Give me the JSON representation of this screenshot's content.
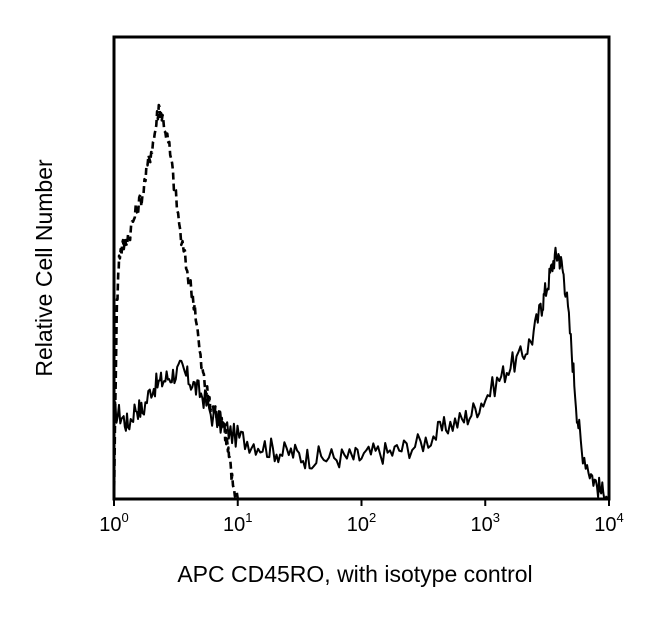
{
  "chart_data": {
    "type": "line",
    "title": "",
    "xlabel": "APC CD45RO, with isotype control",
    "ylabel": "Relative Cell Number",
    "x_scale": "log",
    "xlim": [
      1,
      10000
    ],
    "ylim": [
      0,
      100
    ],
    "grid": false,
    "legend": "none",
    "x_ticks": [
      {
        "value": 1,
        "base": "10",
        "exp": "0"
      },
      {
        "value": 10,
        "base": "10",
        "exp": "1"
      },
      {
        "value": 100,
        "base": "10",
        "exp": "2"
      },
      {
        "value": 1000,
        "base": "10",
        "exp": "3"
      },
      {
        "value": 10000,
        "base": "10",
        "exp": "4"
      }
    ],
    "series": [
      {
        "style": "solid",
        "color": "#000000",
        "x": [
          1.0,
          1.15,
          1.3,
          1.5,
          1.7,
          2.0,
          2.3,
          2.6,
          3.0,
          3.5,
          4.0,
          4.6,
          5.3,
          6.2,
          7.5,
          9.0,
          11,
          14,
          18,
          22,
          28,
          35,
          45,
          60,
          80,
          100,
          130,
          170,
          220,
          300,
          400,
          500,
          650,
          800,
          1000,
          1300,
          1600,
          2000,
          2400,
          2800,
          3000,
          3300,
          3600,
          3900,
          4200,
          4500,
          5000,
          5500,
          6000,
          7000,
          8000,
          9000,
          10000
        ],
        "y": [
          19,
          18,
          16,
          20,
          19,
          24,
          25,
          26,
          27,
          28,
          26,
          24,
          22,
          18,
          16,
          14,
          13,
          12,
          11,
          10,
          10,
          9,
          9,
          9,
          9,
          9,
          10,
          10,
          11,
          12,
          14,
          16,
          17,
          19,
          22,
          26,
          29,
          31,
          35,
          41,
          44,
          48,
          52,
          53,
          50,
          45,
          32,
          19,
          11,
          6,
          3,
          1,
          0
        ]
      },
      {
        "style": "dashed",
        "color": "#000000",
        "x": [
          1.0,
          1.05,
          1.1,
          1.2,
          1.35,
          1.5,
          1.7,
          1.9,
          2.1,
          2.3,
          2.5,
          2.8,
          3.1,
          3.5,
          4.0,
          4.5,
          5.0,
          5.5,
          6.0,
          6.5,
          7.0,
          7.5,
          8.0,
          8.5,
          9.0,
          10,
          11,
          12,
          15,
          20,
          50,
          100,
          1000,
          10000
        ],
        "y": [
          0,
          40,
          53,
          55,
          58,
          62,
          66,
          73,
          78,
          85,
          82,
          76,
          67,
          56,
          48,
          42,
          30,
          24,
          20,
          19,
          18,
          17,
          14,
          9,
          4,
          0,
          0,
          0,
          0,
          0,
          0,
          0,
          0,
          0
        ]
      }
    ]
  }
}
